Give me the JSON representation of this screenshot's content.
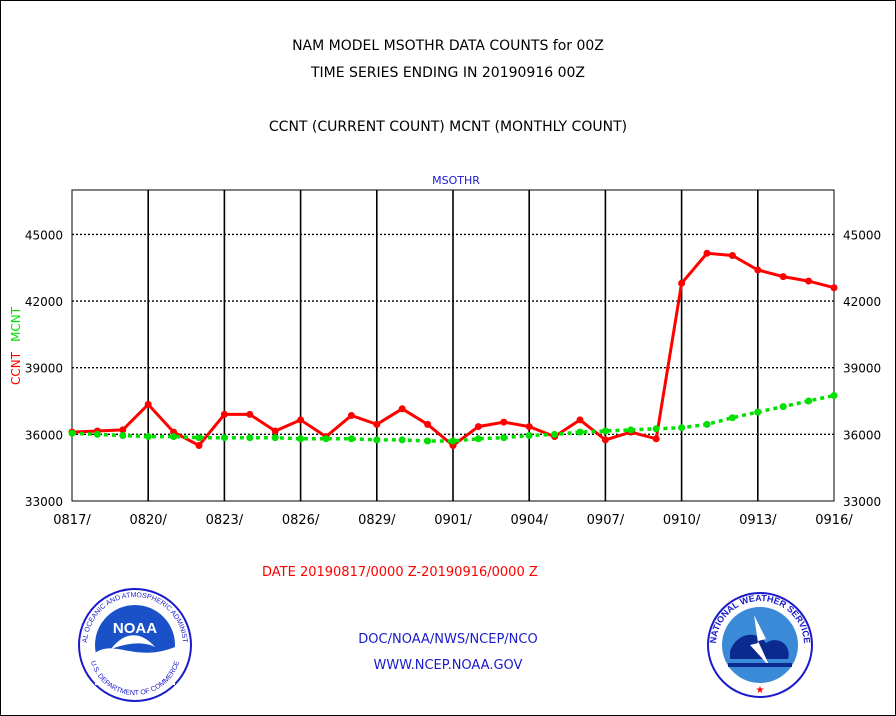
{
  "titles": {
    "line1": "NAM MODEL MSOTHR DATA COUNTS for 00Z",
    "line2": "TIME SERIES ENDING IN 20190916 00Z",
    "line3": "CCNT (CURRENT COUNT) MCNT (MONTHLY COUNT)"
  },
  "colors": {
    "ccnt": "#ff0000",
    "mcnt": "#00e000",
    "subtitle": "#1a1acc",
    "date": "#ff0000",
    "footer": "#1a1acc"
  },
  "footer": {
    "date_range": "DATE 20190817/0000 Z-20190916/0000 Z",
    "org": "DOC/NOAA/NWS/NCEP/NCO",
    "url": "WWW.NCEP.NOAA.GOV"
  },
  "logos": {
    "noaa_text": "NOAA",
    "noaa_ring": "NATIONAL OCEANIC AND ATMOSPHERIC ADMINISTRATION",
    "noaa_ring_bottom": "U.S. DEPARTMENT OF COMMERCE",
    "nws_ring": "NATIONAL WEATHER SERVICE"
  },
  "chart_data": {
    "type": "line",
    "subtitle": "MSOTHR",
    "ylabel_ccnt": "CCNT",
    "ylabel_mcnt": "MCNT",
    "ylim": [
      33000,
      47000
    ],
    "yticks": [
      33000,
      36000,
      39000,
      42000,
      45000
    ],
    "xticks": [
      "0817/",
      "0820/",
      "0823/",
      "0826/",
      "0829/",
      "0901/",
      "0904/",
      "0907/",
      "0910/",
      "0913/",
      "0916/"
    ],
    "x": [
      "0817",
      "0818",
      "0819",
      "0820",
      "0821",
      "0822",
      "0823",
      "0824",
      "0825",
      "0826",
      "0827",
      "0828",
      "0829",
      "0830",
      "0831",
      "0901",
      "0902",
      "0903",
      "0904",
      "0905",
      "0906",
      "0907",
      "0908",
      "0909",
      "0910",
      "0911",
      "0912",
      "0913",
      "0914",
      "0915",
      "0916"
    ],
    "grid": true,
    "series": [
      {
        "name": "CCNT",
        "style": "solid",
        "values": [
          36100,
          36150,
          36200,
          37350,
          36100,
          35500,
          36900,
          36900,
          36150,
          36650,
          35900,
          36850,
          36450,
          37150,
          36450,
          35500,
          36350,
          36550,
          36350,
          35900,
          36650,
          35750,
          36100,
          35800,
          42800,
          44150,
          44050,
          43400,
          43100,
          42900,
          42600
        ]
      },
      {
        "name": "MCNT",
        "style": "dotted",
        "values": [
          36050,
          36000,
          35950,
          35900,
          35900,
          35850,
          35850,
          35850,
          35850,
          35800,
          35800,
          35800,
          35750,
          35750,
          35700,
          35700,
          35800,
          35850,
          35950,
          36000,
          36100,
          36150,
          36200,
          36250,
          36300,
          36450,
          36750,
          37000,
          37250,
          37500,
          37750
        ]
      }
    ]
  }
}
